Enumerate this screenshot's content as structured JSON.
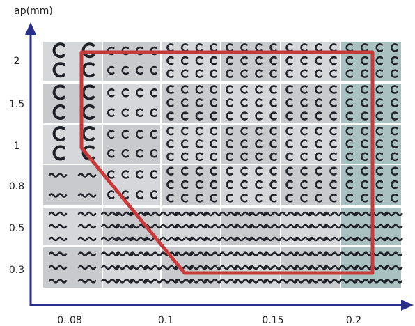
{
  "y_axis": {
    "label": "ap(mm)",
    "ticks": [
      "2",
      "1.5",
      "1",
      "0.8",
      "0.5",
      "0.3"
    ]
  },
  "x_axis": {
    "ticks": [
      "0..08",
      "0.1",
      "0.15",
      "0.2"
    ]
  }
}
